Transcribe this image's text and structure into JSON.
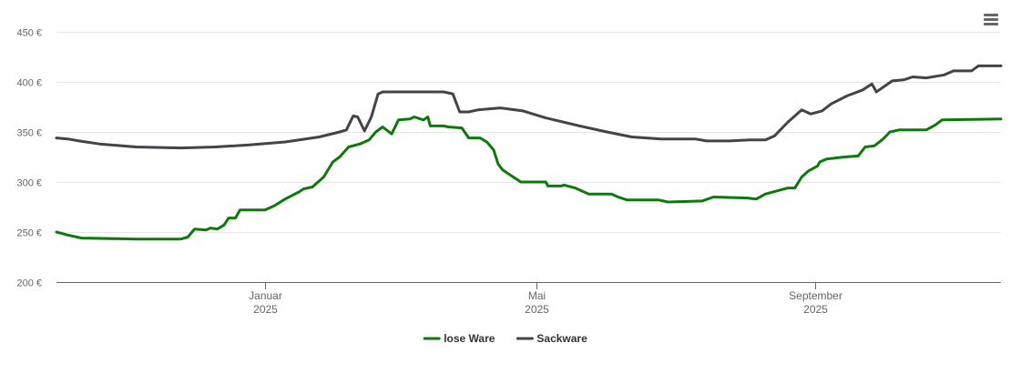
{
  "chart_data": {
    "type": "line",
    "y_axis": {
      "ylim": [
        200,
        450
      ],
      "ticks": [
        200,
        250,
        300,
        350,
        400,
        450
      ],
      "tick_labels": [
        "200 €",
        "250 €",
        "300 €",
        "350 €",
        "400 €",
        "450 €"
      ]
    },
    "x_axis": {
      "xlim": [
        "2024-10-01",
        "2025-11-22"
      ],
      "ticks": [
        {
          "date": "2025-01-01",
          "label": "Januar",
          "year": "2025"
        },
        {
          "date": "2025-05-01",
          "label": "Mai",
          "year": "2025"
        },
        {
          "date": "2025-09-01",
          "label": "September",
          "year": "2025"
        }
      ]
    },
    "grid": true,
    "legend": "bottom-center",
    "series": [
      {
        "name": "lose Ware",
        "color": "#0b7a0b",
        "points": [
          [
            "2024-10-01",
            250
          ],
          [
            "2024-10-06",
            247
          ],
          [
            "2024-10-12",
            244
          ],
          [
            "2024-11-05",
            243
          ],
          [
            "2024-11-25",
            243
          ],
          [
            "2024-11-28",
            245
          ],
          [
            "2024-12-01",
            253
          ],
          [
            "2024-12-06",
            252
          ],
          [
            "2024-12-08",
            254
          ],
          [
            "2024-12-11",
            253
          ],
          [
            "2024-12-14",
            257
          ],
          [
            "2024-12-16",
            264
          ],
          [
            "2024-12-19",
            264
          ],
          [
            "2024-12-21",
            272
          ],
          [
            "2025-01-01",
            272
          ],
          [
            "2025-01-05",
            276
          ],
          [
            "2025-01-10",
            283
          ],
          [
            "2025-01-16",
            290
          ],
          [
            "2025-01-18",
            293
          ],
          [
            "2025-01-22",
            295
          ],
          [
            "2025-01-27",
            305
          ],
          [
            "2025-01-31",
            320
          ],
          [
            "2025-02-03",
            325
          ],
          [
            "2025-02-07",
            335
          ],
          [
            "2025-02-12",
            338
          ],
          [
            "2025-02-16",
            342
          ],
          [
            "2025-02-19",
            350
          ],
          [
            "2025-02-22",
            355
          ],
          [
            "2025-02-26",
            348
          ],
          [
            "2025-03-01",
            362
          ],
          [
            "2025-03-06",
            363
          ],
          [
            "2025-03-08",
            365
          ],
          [
            "2025-03-12",
            362
          ],
          [
            "2025-03-14",
            365
          ],
          [
            "2025-03-15",
            356
          ],
          [
            "2025-03-21",
            356
          ],
          [
            "2025-03-23",
            355
          ],
          [
            "2025-03-29",
            354
          ],
          [
            "2025-04-01",
            344
          ],
          [
            "2025-04-06",
            344
          ],
          [
            "2025-04-09",
            340
          ],
          [
            "2025-04-12",
            332
          ],
          [
            "2025-04-14",
            318
          ],
          [
            "2025-04-16",
            312
          ],
          [
            "2025-04-20",
            306
          ],
          [
            "2025-04-24",
            300
          ],
          [
            "2025-05-05",
            300
          ],
          [
            "2025-05-06",
            296
          ],
          [
            "2025-05-12",
            296
          ],
          [
            "2025-05-13",
            297
          ],
          [
            "2025-05-18",
            294
          ],
          [
            "2025-05-24",
            288
          ],
          [
            "2025-06-03",
            288
          ],
          [
            "2025-06-06",
            285
          ],
          [
            "2025-06-10",
            282
          ],
          [
            "2025-06-24",
            282
          ],
          [
            "2025-06-28",
            280
          ],
          [
            "2025-07-13",
            281
          ],
          [
            "2025-07-18",
            285
          ],
          [
            "2025-08-02",
            284
          ],
          [
            "2025-08-06",
            283
          ],
          [
            "2025-08-10",
            288
          ],
          [
            "2025-08-20",
            294
          ],
          [
            "2025-08-23",
            294
          ],
          [
            "2025-08-26",
            305
          ],
          [
            "2025-08-29",
            311
          ],
          [
            "2025-09-02",
            316
          ],
          [
            "2025-09-03",
            320
          ],
          [
            "2025-09-06",
            323
          ],
          [
            "2025-09-14",
            325
          ],
          [
            "2025-09-20",
            326
          ],
          [
            "2025-09-23",
            335
          ],
          [
            "2025-09-27",
            336
          ],
          [
            "2025-10-01",
            343
          ],
          [
            "2025-10-04",
            350
          ],
          [
            "2025-10-08",
            352
          ],
          [
            "2025-10-20",
            352
          ],
          [
            "2025-10-24",
            357
          ],
          [
            "2025-10-27",
            362
          ],
          [
            "2025-11-22",
            363
          ]
        ]
      },
      {
        "name": "Sackware",
        "color": "#434348",
        "points": [
          [
            "2024-10-01",
            344
          ],
          [
            "2024-10-06",
            343
          ],
          [
            "2024-10-11",
            341
          ],
          [
            "2024-10-20",
            338
          ],
          [
            "2024-11-05",
            335
          ],
          [
            "2024-11-25",
            334
          ],
          [
            "2024-12-10",
            335
          ],
          [
            "2024-12-25",
            337
          ],
          [
            "2025-01-10",
            340
          ],
          [
            "2025-01-25",
            345
          ],
          [
            "2025-02-03",
            350
          ],
          [
            "2025-02-06",
            352
          ],
          [
            "2025-02-09",
            366
          ],
          [
            "2025-02-11",
            365
          ],
          [
            "2025-02-14",
            351
          ],
          [
            "2025-02-17",
            365
          ],
          [
            "2025-02-20",
            388
          ],
          [
            "2025-02-22",
            390
          ],
          [
            "2025-03-21",
            390
          ],
          [
            "2025-03-25",
            388
          ],
          [
            "2025-03-28",
            370
          ],
          [
            "2025-04-01",
            370
          ],
          [
            "2025-04-05",
            372
          ],
          [
            "2025-04-15",
            374
          ],
          [
            "2025-04-25",
            371
          ],
          [
            "2025-05-05",
            364
          ],
          [
            "2025-05-20",
            356
          ],
          [
            "2025-06-01",
            350
          ],
          [
            "2025-06-12",
            345
          ],
          [
            "2025-06-25",
            343
          ],
          [
            "2025-07-10",
            343
          ],
          [
            "2025-07-15",
            341
          ],
          [
            "2025-07-25",
            341
          ],
          [
            "2025-08-03",
            342
          ],
          [
            "2025-08-10",
            342
          ],
          [
            "2025-08-14",
            346
          ],
          [
            "2025-08-20",
            360
          ],
          [
            "2025-08-26",
            372
          ],
          [
            "2025-08-30",
            368
          ],
          [
            "2025-09-04",
            371
          ],
          [
            "2025-09-08",
            378
          ],
          [
            "2025-09-15",
            386
          ],
          [
            "2025-09-22",
            392
          ],
          [
            "2025-09-26",
            398
          ],
          [
            "2025-09-28",
            390
          ],
          [
            "2025-10-05",
            401
          ],
          [
            "2025-10-10",
            402
          ],
          [
            "2025-10-14",
            405
          ],
          [
            "2025-10-20",
            404
          ],
          [
            "2025-10-28",
            407
          ],
          [
            "2025-11-01",
            411
          ],
          [
            "2025-11-09",
            411
          ],
          [
            "2025-11-12",
            416
          ],
          [
            "2025-11-22",
            416
          ]
        ]
      }
    ]
  },
  "toolbar": {
    "menu_icon": "hamburger-menu-icon"
  }
}
